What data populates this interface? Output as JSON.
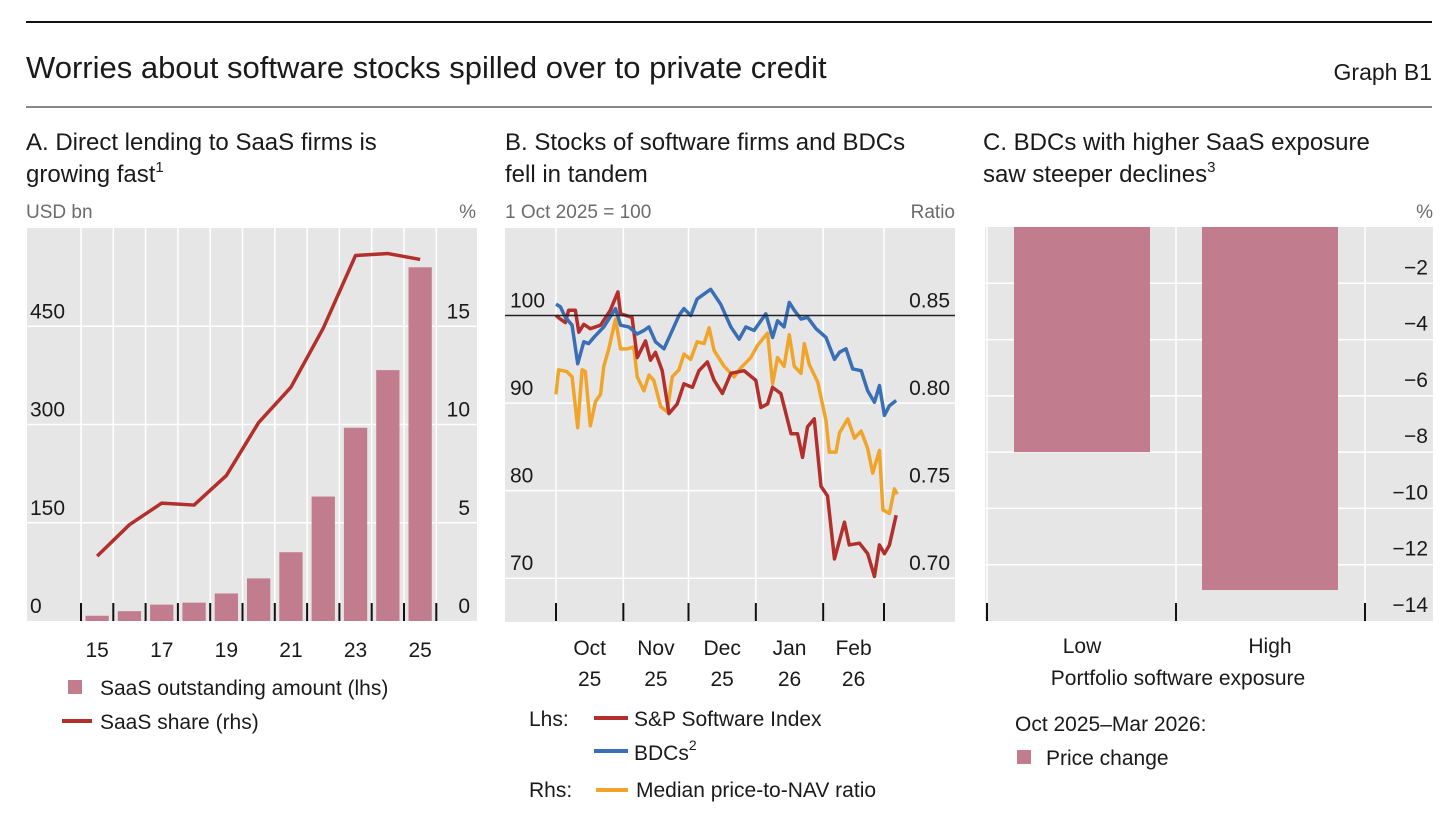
{
  "header": {
    "title": "Worries about software stocks spilled over to private credit",
    "graph_id": "Graph B1"
  },
  "colors": {
    "bar": "#c17d8e",
    "red": "#b22f2c",
    "blue": "#3a6fb5",
    "yellow": "#f0a52a",
    "plot_bg": "#e6e6e6"
  },
  "chart_data": [
    {
      "id": "A",
      "type": "bar",
      "title_line1": "A. Direct lending to SaaS firms is",
      "title_line2": "growing fast",
      "title_sup": "1",
      "ylabel_left": "USD bn",
      "ylabel_right": "%",
      "categories": [
        "15",
        "16",
        "17",
        "18",
        "19",
        "20",
        "21",
        "22",
        "23",
        "24",
        "25"
      ],
      "x_tick_labels": [
        "15",
        "17",
        "19",
        "21",
        "23",
        "25"
      ],
      "ylim_left": [
        0,
        600
      ],
      "ylim_right": [
        0,
        20
      ],
      "yticks_left": [
        "0",
        "150",
        "300",
        "450"
      ],
      "yticks_right": [
        "0",
        "5",
        "10",
        "15"
      ],
      "series": [
        {
          "name": "SaaS outstanding amount (lhs)",
          "kind": "bar",
          "axis": "left",
          "values": [
            8,
            15,
            25,
            28,
            42,
            65,
            105,
            190,
            295,
            383,
            540
          ]
        },
        {
          "name": "SaaS share (rhs)",
          "kind": "line",
          "axis": "right",
          "values": [
            3.3,
            4.9,
            6.0,
            5.9,
            7.4,
            10.1,
            11.9,
            14.9,
            18.6,
            18.7,
            18.4
          ]
        }
      ],
      "grid": true
    },
    {
      "id": "B",
      "type": "line",
      "title_line1": "B. Stocks of software firms and BDCs",
      "title_line2": "fell in tandem",
      "ylabel_left": "1 Oct 2025 = 100",
      "ylabel_right": "Ratio",
      "x_unit": "days since 1 Oct 2025",
      "x_ticks_days": [
        0,
        31,
        61,
        92,
        123,
        151
      ],
      "month_labels": [
        [
          "Oct",
          "25"
        ],
        [
          "Nov",
          "25"
        ],
        [
          "Dec",
          "25"
        ],
        [
          "Jan",
          "26"
        ],
        [
          "Feb",
          "26"
        ]
      ],
      "ylim_left": [
        65,
        110
      ],
      "ylim_right": [
        0.675,
        0.9
      ],
      "yticks_left": [
        "70",
        "80",
        "90",
        "100"
      ],
      "yticks_right": [
        "0.70",
        "0.75",
        "0.80",
        "0.85"
      ],
      "reference_line": 100,
      "legend": {
        "lhs_label": "Lhs:",
        "rhs_label": "Rhs:",
        "bdc_sup": "2"
      },
      "series": [
        {
          "name": "S&P Software Index",
          "axis": "left",
          "color_key": "red",
          "points": [
            [
              0,
              100
            ],
            [
              2,
              99.6
            ],
            [
              4.3,
              99.2
            ],
            [
              5.8,
              100.6
            ],
            [
              8.9,
              100.6
            ],
            [
              10.5,
              98.1
            ],
            [
              12.8,
              99
            ],
            [
              15.8,
              98.5
            ],
            [
              20.5,
              98.9
            ],
            [
              25,
              100.6
            ],
            [
              28.5,
              102.7
            ],
            [
              29.7,
              100.2
            ],
            [
              35,
              99.8
            ],
            [
              37.4,
              95.2
            ],
            [
              41.2,
              97.1
            ],
            [
              43.5,
              94.9
            ],
            [
              45.8,
              95.8
            ],
            [
              48.9,
              93.7
            ],
            [
              52,
              88.8
            ],
            [
              55.8,
              89.9
            ],
            [
              58.9,
              92.2
            ],
            [
              62.8,
              91.8
            ],
            [
              65.8,
              93.7
            ],
            [
              69.7,
              94.7
            ],
            [
              72.8,
              92.6
            ],
            [
              76.6,
              91.1
            ],
            [
              80.5,
              93.4
            ],
            [
              86.6,
              93.7
            ],
            [
              92,
              92.6
            ],
            [
              94.3,
              89.5
            ],
            [
              97.4,
              89.9
            ],
            [
              99.7,
              91.8
            ],
            [
              103.5,
              91.1
            ],
            [
              108.2,
              86.5
            ],
            [
              111.2,
              86.5
            ],
            [
              113.5,
              83.8
            ],
            [
              115.8,
              87.3
            ],
            [
              118.9,
              88.2
            ],
            [
              122,
              80.5
            ],
            [
              125,
              79.4
            ],
            [
              128.2,
              72.2
            ],
            [
              132.8,
              76.4
            ],
            [
              135,
              73.8
            ],
            [
              139.7,
              74
            ],
            [
              143.5,
              72.8
            ],
            [
              146.6,
              70.2
            ],
            [
              148.9,
              73.8
            ],
            [
              151.2,
              72.8
            ],
            [
              153.5,
              73.8
            ],
            [
              156.6,
              77.2
            ]
          ]
        },
        {
          "name": "BDCs",
          "axis": "left",
          "color_key": "blue",
          "points": [
            [
              0,
              101.3
            ],
            [
              2,
              101
            ],
            [
              4.3,
              99.8
            ],
            [
              7.4,
              98.9
            ],
            [
              10,
              94.5
            ],
            [
              12.8,
              97
            ],
            [
              15,
              96.8
            ],
            [
              17.4,
              97.5
            ],
            [
              22,
              98.7
            ],
            [
              27.4,
              100.8
            ],
            [
              29.7,
              98.9
            ],
            [
              33.5,
              98.7
            ],
            [
              37.4,
              97.9
            ],
            [
              40.5,
              98.3
            ],
            [
              42.8,
              98.7
            ],
            [
              45.8,
              97
            ],
            [
              49.7,
              96.2
            ],
            [
              52.8,
              97.9
            ],
            [
              56.6,
              100
            ],
            [
              58.9,
              100.8
            ],
            [
              62,
              100
            ],
            [
              65,
              101.9
            ],
            [
              71.2,
              103
            ],
            [
              75.8,
              101.3
            ],
            [
              80.5,
              98.7
            ],
            [
              84.3,
              97.3
            ],
            [
              87.4,
              98.7
            ],
            [
              91.2,
              98.3
            ],
            [
              96.6,
              100.2
            ],
            [
              99.7,
              97.5
            ],
            [
              102,
              99.4
            ],
            [
              105,
              98.7
            ],
            [
              107.4,
              101.5
            ],
            [
              109.7,
              100.6
            ],
            [
              112.8,
              99.6
            ],
            [
              115.8,
              99.8
            ],
            [
              119.7,
              98.5
            ],
            [
              124.3,
              97.5
            ],
            [
              128.2,
              95
            ],
            [
              130.5,
              95.8
            ],
            [
              133.5,
              96.2
            ],
            [
              136.6,
              93.9
            ],
            [
              140.5,
              93.7
            ],
            [
              143.5,
              91.4
            ],
            [
              146.6,
              90.1
            ],
            [
              148.9,
              92
            ],
            [
              151.2,
              88.6
            ],
            [
              153.5,
              89.7
            ],
            [
              156.6,
              90.3
            ]
          ]
        },
        {
          "name": "Median price-to-NAV ratio",
          "axis": "right",
          "color_key": "yellow",
          "points": [
            [
              0,
              0.805
            ],
            [
              1.2,
              0.819
            ],
            [
              5,
              0.818
            ],
            [
              7.4,
              0.815
            ],
            [
              10,
              0.786
            ],
            [
              12,
              0.819
            ],
            [
              13.5,
              0.818
            ],
            [
              15.8,
              0.787
            ],
            [
              18.2,
              0.801
            ],
            [
              20.5,
              0.805
            ],
            [
              22,
              0.821
            ],
            [
              24.3,
              0.831
            ],
            [
              27.4,
              0.848
            ],
            [
              29.7,
              0.831
            ],
            [
              32.8,
              0.831
            ],
            [
              35.8,
              0.832
            ],
            [
              37.4,
              0.815
            ],
            [
              40.5,
              0.807
            ],
            [
              42.8,
              0.816
            ],
            [
              45,
              0.813
            ],
            [
              48.2,
              0.798
            ],
            [
              51.2,
              0.795
            ],
            [
              53.5,
              0.815
            ],
            [
              56.6,
              0.819
            ],
            [
              58.9,
              0.828
            ],
            [
              62,
              0.825
            ],
            [
              65,
              0.835
            ],
            [
              68.2,
              0.834
            ],
            [
              70.5,
              0.843
            ],
            [
              72.8,
              0.83
            ],
            [
              77.4,
              0.821
            ],
            [
              82,
              0.815
            ],
            [
              85,
              0.82
            ],
            [
              89.7,
              0.826
            ],
            [
              92.8,
              0.833
            ],
            [
              97.4,
              0.84
            ],
            [
              99.7,
              0.811
            ],
            [
              102,
              0.826
            ],
            [
              105,
              0.821
            ],
            [
              107.4,
              0.839
            ],
            [
              109.7,
              0.821
            ],
            [
              112.8,
              0.817
            ],
            [
              114.3,
              0.834
            ],
            [
              116.6,
              0.822
            ],
            [
              120.5,
              0.812
            ],
            [
              124.3,
              0.79
            ],
            [
              125.8,
              0.772
            ],
            [
              128.9,
              0.772
            ],
            [
              130.5,
              0.783
            ],
            [
              134.3,
              0.791
            ],
            [
              137.4,
              0.78
            ],
            [
              140.5,
              0.784
            ],
            [
              143.5,
              0.774
            ],
            [
              145.8,
              0.76
            ],
            [
              148.9,
              0.773
            ],
            [
              150.5,
              0.739
            ],
            [
              153.5,
              0.737
            ],
            [
              155.8,
              0.751
            ],
            [
              157.1,
              0.748
            ]
          ]
        }
      ],
      "grid": true
    },
    {
      "id": "C",
      "type": "bar",
      "title_line1": "C. BDCs with higher SaaS exposure",
      "title_line2": "saw steeper declines",
      "title_sup": "3",
      "ylabel_right": "%",
      "categories": [
        "Low",
        "High"
      ],
      "xlabel": "Portfolio software exposure",
      "ylim": [
        -14,
        0
      ],
      "yticks": [
        "-2",
        "-4",
        "-6",
        "-8",
        "-10",
        "-12",
        "-14"
      ],
      "yticks_display": [
        "−2",
        "−4",
        "−6",
        "−8",
        "−10",
        "−12",
        "−14"
      ],
      "series": [
        {
          "name": "Price change",
          "values": [
            -8.0,
            -12.9
          ]
        }
      ],
      "legend_title": "Oct 2025–Mar 2026:",
      "grid": true
    }
  ]
}
